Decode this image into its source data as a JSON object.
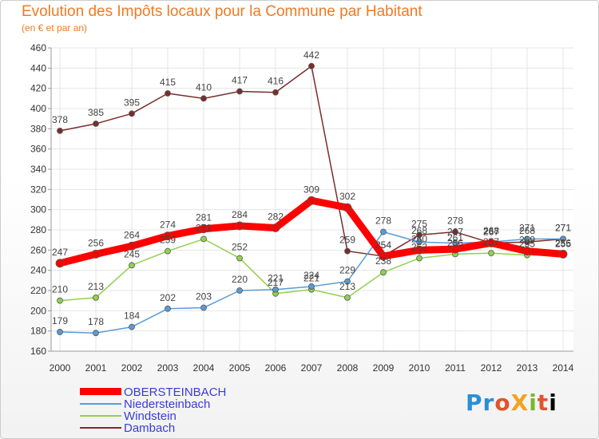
{
  "header": {
    "title": "Evolution des Impôts locaux pour la Commune par Habitant",
    "subtitle": "(en € et par an)"
  },
  "logo": {
    "text": "ProXiti",
    "letters": [
      "P",
      "r",
      "o",
      "X",
      "i",
      "t",
      "i"
    ]
  },
  "chart_data": {
    "type": "line",
    "x": [
      "2000",
      "2001",
      "2002",
      "2003",
      "2004",
      "2005",
      "2006",
      "2007",
      "2008",
      "2009",
      "2010",
      "2011",
      "2012",
      "2013",
      "2014"
    ],
    "ylim": [
      160,
      460
    ],
    "yticks": [
      160,
      180,
      200,
      220,
      240,
      260,
      280,
      300,
      320,
      340,
      360,
      380,
      400,
      420,
      440,
      460
    ],
    "grid": true,
    "legend_position": "bottom-left",
    "series": [
      {
        "name": "OBERSTEINBACH",
        "color": "#ff0000",
        "thick": true,
        "values": [
          247,
          256,
          264,
          274,
          281,
          284,
          282,
          309,
          302,
          254,
          260,
          261,
          267,
          259,
          256
        ]
      },
      {
        "name": "Niedersteinbach",
        "color": "#5b9bd5",
        "thick": false,
        "values": [
          179,
          178,
          184,
          202,
          203,
          220,
          221,
          224,
          229,
          278,
          268,
          267,
          268,
          271,
          271
        ]
      },
      {
        "name": "Windstein",
        "color": "#92d050",
        "thick": false,
        "values": [
          210,
          213,
          245,
          259,
          271,
          252,
          217,
          221,
          213,
          238,
          252,
          256,
          257,
          255,
          255
        ]
      },
      {
        "name": "Dambach",
        "color": "#7b2c2c",
        "thick": false,
        "values": [
          378,
          385,
          395,
          415,
          410,
          417,
          416,
          442,
          259,
          254,
          275,
          278,
          267,
          268,
          271
        ]
      }
    ]
  }
}
